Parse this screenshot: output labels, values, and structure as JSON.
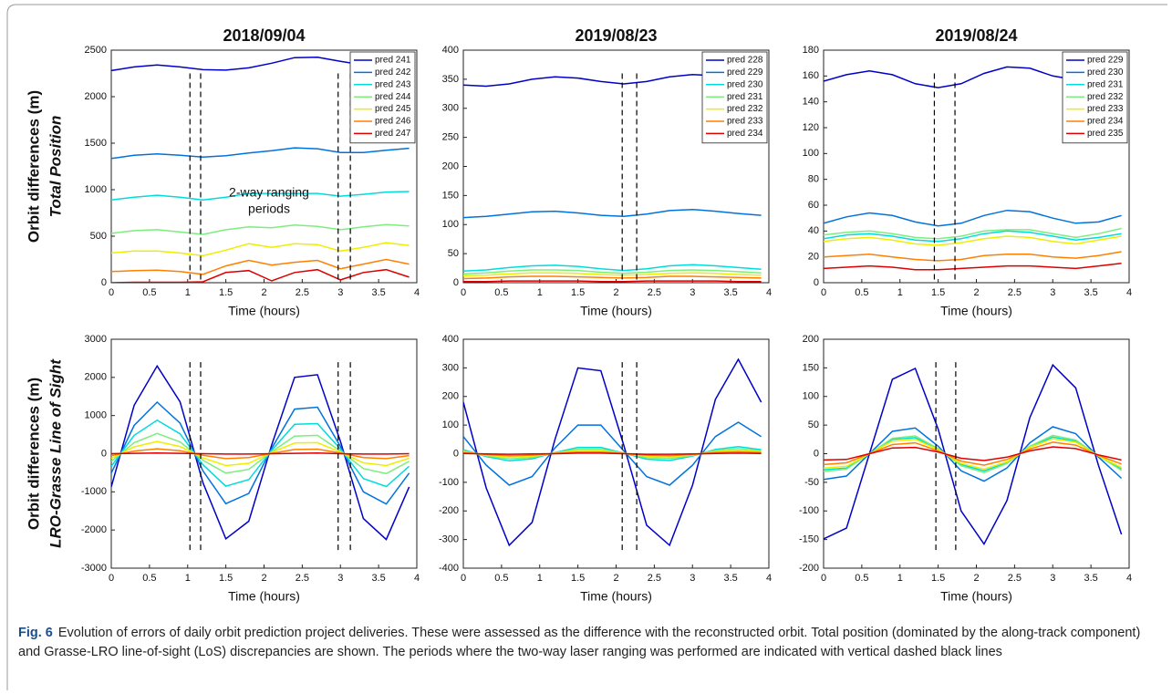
{
  "chart_data": [
    {
      "type": "line",
      "title": "2018/09/04",
      "ylabel": "Orbit differences (m)",
      "ylabel2": "Total Position",
      "xlabel": "Time (hours)",
      "x": [
        0,
        0.3,
        0.6,
        0.9,
        1.2,
        1.5,
        1.8,
        2.1,
        2.4,
        2.7,
        3.0,
        3.3,
        3.6,
        3.9
      ],
      "xlim": [
        0,
        4
      ],
      "xticks": [
        0,
        0.5,
        1,
        1.5,
        2,
        2.5,
        3,
        3.5,
        4
      ],
      "ylim": [
        0,
        2500
      ],
      "yticks": [
        0,
        500,
        1000,
        1500,
        2000,
        2500
      ],
      "vlines": [
        1.03,
        1.17,
        2.97,
        3.13
      ],
      "legend": "upper right",
      "annotation": [
        "2-way ranging",
        "periods"
      ],
      "series": [
        {
          "name": "pred 241",
          "color": "#0000c8",
          "values": [
            2280,
            2320,
            2340,
            2320,
            2290,
            2285,
            2310,
            2360,
            2420,
            2425,
            2380,
            2340,
            2330,
            2360
          ]
        },
        {
          "name": "pred 242",
          "color": "#0072dd",
          "values": [
            1335,
            1370,
            1385,
            1370,
            1350,
            1365,
            1395,
            1420,
            1450,
            1440,
            1400,
            1400,
            1425,
            1445
          ]
        },
        {
          "name": "pred 243",
          "color": "#00dcdc",
          "values": [
            890,
            920,
            940,
            920,
            890,
            920,
            960,
            960,
            960,
            960,
            930,
            950,
            975,
            980
          ]
        },
        {
          "name": "pred 244",
          "color": "#7ded7d",
          "values": [
            530,
            560,
            570,
            545,
            520,
            570,
            600,
            590,
            620,
            605,
            570,
            600,
            625,
            610
          ]
        },
        {
          "name": "pred 245",
          "color": "#eeee00",
          "values": [
            320,
            340,
            340,
            320,
            290,
            350,
            420,
            380,
            420,
            410,
            340,
            380,
            430,
            400
          ]
        },
        {
          "name": "pred 246",
          "color": "#ff8000",
          "values": [
            120,
            130,
            135,
            120,
            90,
            180,
            240,
            190,
            220,
            240,
            150,
            200,
            250,
            200
          ]
        },
        {
          "name": "pred 247",
          "color": "#dd0000",
          "values": [
            0,
            5,
            5,
            5,
            10,
            110,
            130,
            20,
            110,
            140,
            30,
            110,
            140,
            60
          ]
        }
      ]
    },
    {
      "type": "line",
      "title": "2019/08/23",
      "xlabel": "Time (hours)",
      "x": [
        0,
        0.3,
        0.6,
        0.9,
        1.2,
        1.5,
        1.8,
        2.1,
        2.4,
        2.7,
        3.0,
        3.3,
        3.6,
        3.9
      ],
      "xlim": [
        0,
        4
      ],
      "xticks": [
        0,
        0.5,
        1,
        1.5,
        2,
        2.5,
        3,
        3.5,
        4
      ],
      "ylim": [
        0,
        400
      ],
      "yticks": [
        0,
        50,
        100,
        150,
        200,
        250,
        300,
        350,
        400
      ],
      "vlines": [
        2.08,
        2.27
      ],
      "legend": "upper right",
      "series": [
        {
          "name": "pred 228",
          "color": "#0000c8",
          "values": [
            340,
            338,
            342,
            350,
            354,
            352,
            346,
            342,
            346,
            354,
            358,
            356,
            356,
            360
          ]
        },
        {
          "name": "pred 229",
          "color": "#0072dd",
          "values": [
            112,
            114,
            118,
            122,
            123,
            120,
            116,
            114,
            118,
            124,
            126,
            123,
            119,
            116
          ]
        },
        {
          "name": "pred 230",
          "color": "#00dcdc",
          "values": [
            20,
            22,
            26,
            29,
            30,
            28,
            24,
            21,
            24,
            29,
            31,
            29,
            26,
            23
          ]
        },
        {
          "name": "pred 231",
          "color": "#7ded7d",
          "values": [
            15,
            17,
            20,
            22,
            22,
            21,
            18,
            16,
            18,
            21,
            22,
            21,
            19,
            17
          ]
        },
        {
          "name": "pred 232",
          "color": "#eeee00",
          "values": [
            12,
            13,
            15,
            17,
            17,
            16,
            14,
            13,
            14,
            16,
            17,
            16,
            14,
            13
          ]
        },
        {
          "name": "pred 233",
          "color": "#ff8000",
          "values": [
            7,
            8,
            10,
            11,
            11,
            10,
            9,
            8,
            9,
            11,
            11,
            10,
            9,
            8
          ]
        },
        {
          "name": "pred 234",
          "color": "#dd0000",
          "values": [
            2,
            2,
            3,
            3,
            3,
            3,
            2,
            2,
            3,
            3,
            3,
            3,
            2,
            2
          ]
        }
      ]
    },
    {
      "type": "line",
      "title": "2019/08/24",
      "xlabel": "Time (hours)",
      "x": [
        0,
        0.3,
        0.6,
        0.9,
        1.2,
        1.5,
        1.8,
        2.1,
        2.4,
        2.7,
        3.0,
        3.3,
        3.6,
        3.9
      ],
      "xlim": [
        0,
        4
      ],
      "xticks": [
        0,
        0.5,
        1,
        1.5,
        2,
        2.5,
        3,
        3.5,
        4
      ],
      "ylim": [
        0,
        180
      ],
      "yticks": [
        0,
        20,
        40,
        60,
        80,
        100,
        120,
        140,
        160,
        180
      ],
      "vlines": [
        1.45,
        1.72
      ],
      "legend": "upper right",
      "series": [
        {
          "name": "pred 229",
          "color": "#0000c8",
          "values": [
            156,
            161,
            164,
            161,
            154,
            151,
            154,
            162,
            167,
            166,
            160,
            157,
            158,
            162
          ]
        },
        {
          "name": "pred 230",
          "color": "#0072dd",
          "values": [
            46,
            51,
            54,
            52,
            47,
            44,
            46,
            52,
            56,
            55,
            50,
            46,
            47,
            52
          ]
        },
        {
          "name": "pred 231",
          "color": "#00dcdc",
          "values": [
            34,
            37,
            38,
            36,
            33,
            32,
            34,
            38,
            40,
            39,
            36,
            33,
            35,
            38
          ]
        },
        {
          "name": "pred 232",
          "color": "#7ded7d",
          "values": [
            37,
            39,
            40,
            38,
            35,
            34,
            36,
            40,
            41,
            41,
            38,
            35,
            38,
            42
          ]
        },
        {
          "name": "pred 233",
          "color": "#eeee00",
          "values": [
            32,
            34,
            35,
            33,
            30,
            29,
            31,
            34,
            36,
            35,
            32,
            30,
            33,
            36
          ]
        },
        {
          "name": "pred 234",
          "color": "#ff8000",
          "values": [
            20,
            21,
            22,
            20,
            18,
            17,
            18,
            21,
            22,
            22,
            20,
            19,
            21,
            24
          ]
        },
        {
          "name": "pred 235",
          "color": "#dd0000",
          "values": [
            11,
            12,
            13,
            12,
            10,
            10,
            11,
            12,
            13,
            13,
            12,
            11,
            13,
            15
          ]
        }
      ]
    },
    {
      "type": "line",
      "ylabel": "Orbit differences (m)",
      "ylabel2": "LRO-Grasse Line of Sight",
      "xlabel": "Time (hours)",
      "x": [
        0,
        0.3,
        0.6,
        0.9,
        1.2,
        1.5,
        1.8,
        2.1,
        2.4,
        2.7,
        3.0,
        3.3,
        3.6,
        3.9
      ],
      "xlim": [
        0,
        4
      ],
      "xticks": [
        0,
        0.5,
        1,
        1.5,
        2,
        2.5,
        3,
        3.5,
        4
      ],
      "ylim": [
        -3000,
        3000
      ],
      "yticks": [
        -3000,
        -2000,
        -1000,
        0,
        1000,
        2000,
        3000
      ],
      "vlines": [
        1.03,
        1.17,
        2.97,
        3.13
      ],
      "series": [
        {
          "color": "#0000c8",
          "values": [
            -870,
            1270,
            2300,
            1360,
            -760,
            -2230,
            -1770,
            230,
            2000,
            2070,
            320,
            -1700,
            -2250,
            -870
          ]
        },
        {
          "color": "#0072dd",
          "values": [
            -510,
            740,
            1350,
            800,
            -450,
            -1310,
            -1040,
            140,
            1170,
            1220,
            190,
            -1000,
            -1320,
            -510
          ]
        },
        {
          "color": "#00dcdc",
          "values": [
            -330,
            480,
            880,
            520,
            -290,
            -850,
            -680,
            90,
            770,
            790,
            120,
            -650,
            -860,
            -330
          ]
        },
        {
          "color": "#7ded7d",
          "values": [
            -200,
            290,
            530,
            310,
            -170,
            -510,
            -410,
            50,
            460,
            480,
            70,
            -390,
            -520,
            -200
          ]
        },
        {
          "color": "#eeee00",
          "values": [
            -120,
            180,
            320,
            190,
            -110,
            -310,
            -250,
            30,
            280,
            290,
            40,
            -240,
            -310,
            -120
          ]
        },
        {
          "color": "#ff8000",
          "values": [
            -50,
            70,
            130,
            80,
            -40,
            -130,
            -100,
            10,
            110,
            120,
            20,
            -100,
            -130,
            -50
          ]
        },
        {
          "color": "#dd0000",
          "values": [
            0,
            10,
            20,
            10,
            0,
            -10,
            -10,
            0,
            10,
            20,
            0,
            -10,
            -10,
            0
          ]
        }
      ]
    },
    {
      "type": "line",
      "xlabel": "Time (hours)",
      "x": [
        0,
        0.3,
        0.6,
        0.9,
        1.2,
        1.5,
        1.8,
        2.1,
        2.4,
        2.7,
        3.0,
        3.3,
        3.6,
        3.9
      ],
      "xlim": [
        0,
        4
      ],
      "xticks": [
        0,
        0.5,
        1,
        1.5,
        2,
        2.5,
        3,
        3.5,
        4
      ],
      "ylim": [
        -400,
        400
      ],
      "yticks": [
        -400,
        -300,
        -200,
        -100,
        0,
        100,
        200,
        300,
        400
      ],
      "vlines": [
        2.08,
        2.27
      ],
      "series": [
        {
          "color": "#0000c8",
          "values": [
            180,
            -120,
            -320,
            -240,
            50,
            300,
            290,
            30,
            -250,
            -320,
            -110,
            190,
            330,
            180
          ]
        },
        {
          "color": "#0072dd",
          "values": [
            60,
            -40,
            -110,
            -80,
            20,
            100,
            100,
            10,
            -80,
            -110,
            -40,
            60,
            110,
            60
          ]
        },
        {
          "color": "#00dcdc",
          "values": [
            14,
            -10,
            -25,
            -18,
            4,
            22,
            22,
            2,
            -19,
            -24,
            -8,
            15,
            25,
            14
          ]
        },
        {
          "color": "#7ded7d",
          "values": [
            10,
            -7,
            -18,
            -13,
            3,
            16,
            16,
            2,
            -14,
            -17,
            -6,
            11,
            18,
            10
          ]
        },
        {
          "color": "#eeee00",
          "values": [
            7,
            -5,
            -12,
            -9,
            2,
            11,
            10,
            1,
            -9,
            -12,
            -4,
            7,
            12,
            7
          ]
        },
        {
          "color": "#ff8000",
          "values": [
            4,
            -3,
            -7,
            -5,
            1,
            6,
            6,
            1,
            -5,
            -7,
            -2,
            4,
            7,
            4
          ]
        },
        {
          "color": "#dd0000",
          "values": [
            1,
            -1,
            -2,
            -1,
            0,
            2,
            2,
            0,
            -2,
            -2,
            -1,
            1,
            2,
            1
          ]
        }
      ]
    },
    {
      "type": "line",
      "xlabel": "Time (hours)",
      "x": [
        0,
        0.3,
        0.6,
        0.9,
        1.2,
        1.5,
        1.8,
        2.1,
        2.4,
        2.7,
        3.0,
        3.3,
        3.6,
        3.9
      ],
      "xlim": [
        0,
        4
      ],
      "xticks": [
        0,
        0.5,
        1,
        1.5,
        2,
        2.5,
        3,
        3.5,
        4
      ],
      "ylim": [
        -200,
        200
      ],
      "yticks": [
        -200,
        -150,
        -100,
        -50,
        0,
        50,
        100,
        150,
        200
      ],
      "vlines": [
        1.47,
        1.73
      ],
      "series": [
        {
          "color": "#0000c8",
          "values": [
            -149,
            -130,
            0,
            130,
            149,
            43,
            -100,
            -158,
            -82,
            63,
            155,
            115,
            -21,
            -141
          ]
        },
        {
          "color": "#0072dd",
          "values": [
            -45,
            -39,
            0,
            39,
            45,
            13,
            -30,
            -48,
            -25,
            19,
            47,
            35,
            -6,
            -43
          ]
        },
        {
          "color": "#00dcdc",
          "values": [
            -28,
            -25,
            0,
            25,
            28,
            8,
            -19,
            -30,
            -16,
            12,
            29,
            22,
            -4,
            -27
          ]
        },
        {
          "color": "#7ded7d",
          "values": [
            -31,
            -27,
            0,
            27,
            31,
            9,
            -21,
            -33,
            -17,
            13,
            32,
            24,
            -4,
            -29
          ]
        },
        {
          "color": "#eeee00",
          "values": [
            -25,
            -22,
            0,
            22,
            25,
            7,
            -17,
            -27,
            -14,
            11,
            26,
            20,
            -4,
            -24
          ]
        },
        {
          "color": "#ff8000",
          "values": [
            -19,
            -16,
            0,
            16,
            19,
            5,
            -13,
            -20,
            -10,
            8,
            20,
            15,
            -3,
            -18
          ]
        },
        {
          "color": "#dd0000",
          "values": [
            -11,
            -10,
            0,
            10,
            11,
            3,
            -8,
            -12,
            -6,
            5,
            12,
            9,
            -2,
            -11
          ]
        }
      ]
    }
  ],
  "caption": {
    "label": "Fig. 6",
    "text": "Evolution of errors of daily orbit prediction project deliveries. These were assessed as the difference with the reconstructed orbit. Total position (dominated by the along-track component) and Grasse-LRO line-of-sight (LoS) discrepancies are shown. The periods where the two-way laser ranging was performed are indicated with vertical dashed black lines"
  }
}
